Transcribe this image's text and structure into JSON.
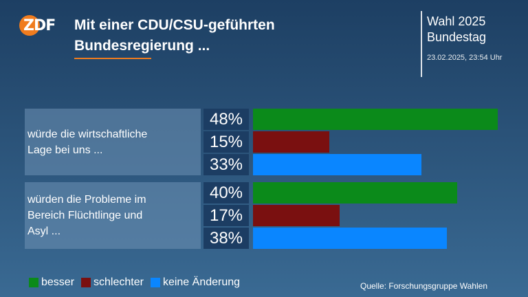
{
  "header": {
    "logo_text": "ZDF",
    "title_line1": "Mit einer CDU/CSU-geführten",
    "title_line2": "Bundesregierung ...",
    "election_line1": "Wahl 2025",
    "election_line2": "Bundestag",
    "timestamp": "23.02.2025, 23:54 Uhr"
  },
  "colors": {
    "besser": "#0b8a1a",
    "schlechter": "#7a1010",
    "keine_aenderung": "#0a86ff",
    "accent": "#f07c1e"
  },
  "chart_data": {
    "type": "bar",
    "orientation": "horizontal",
    "unit": "%",
    "groups": [
      {
        "label_lines": [
          "würde die wirtschaftliche",
          "Lage bei uns ..."
        ],
        "values": [
          48,
          15,
          33
        ]
      },
      {
        "label_lines": [
          "würden die Probleme im",
          "Bereich Flüchtlinge und",
          "Asyl ..."
        ],
        "values": [
          40,
          17,
          38
        ]
      }
    ],
    "series": [
      {
        "name": "besser"
      },
      {
        "name": "schlechter"
      },
      {
        "name": "keine Änderung"
      }
    ],
    "value_labels": [
      [
        "48%",
        "15%",
        "33%"
      ],
      [
        "40%",
        "17%",
        "38%"
      ]
    ]
  },
  "footer": {
    "source": "Quelle: Forschungsgruppe Wahlen"
  }
}
